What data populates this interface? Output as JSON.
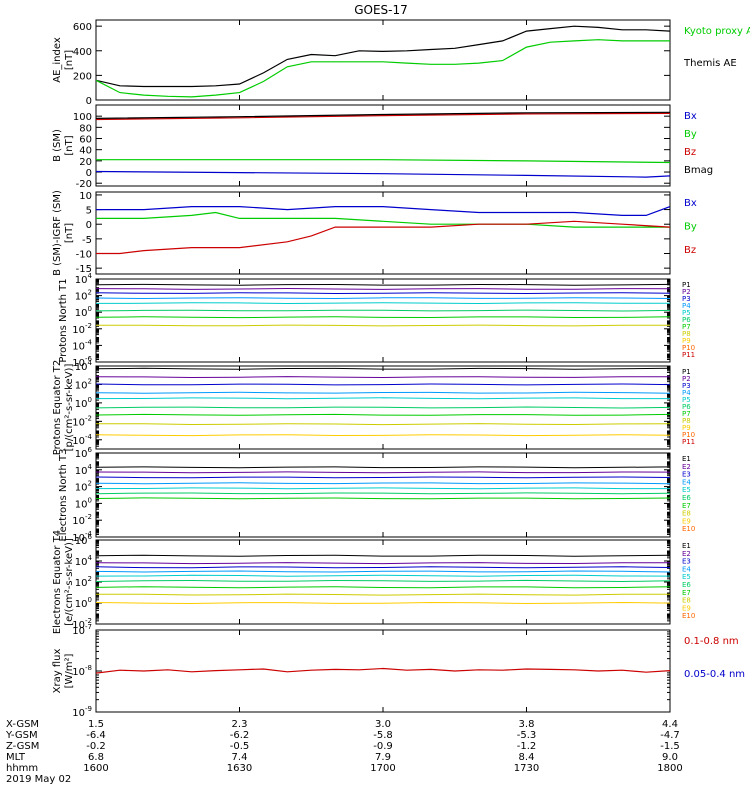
{
  "title": "GOES-17",
  "footer": {
    "row_labels": [
      "X-GSM",
      "Y-GSM",
      "Z-GSM",
      "MLT",
      "hhmm",
      "2019 May 02"
    ],
    "columns": [
      [
        "1.5",
        "-6.4",
        "-0.2",
        "6.8",
        "1600"
      ],
      [
        "2.3",
        "-6.2",
        "-0.5",
        "7.4",
        "1630"
      ],
      [
        "3.0",
        "-5.8",
        "-0.9",
        "7.9",
        "1700"
      ],
      [
        "3.8",
        "-5.3",
        "-1.2",
        "8.4",
        "1730"
      ],
      [
        "4.4",
        "-4.7",
        "-1.5",
        "9.0",
        "1800"
      ]
    ]
  },
  "colors": {
    "black": "#000000",
    "green": "#00cc00",
    "blue": "#0000cc",
    "red": "#cc0000",
    "p_colors": [
      "#000000",
      "#660099",
      "#0000cc",
      "#0099ff",
      "#00cccc",
      "#00cc66",
      "#00cc00",
      "#cccc00",
      "#ffcc00",
      "#ff6600",
      "#cc0000"
    ]
  },
  "chart_data": [
    {
      "type": "line",
      "ylabel": "AE_index [nT]",
      "ylim": [
        0,
        650
      ],
      "yticks": [
        "0",
        "200",
        "400",
        "600"
      ],
      "legend": [
        "Kyoto proxy AE",
        "Themis AE"
      ],
      "series": [
        {
          "name": "Themis AE",
          "x": [
            1600,
            1605,
            1610,
            1615,
            1620,
            1625,
            1630,
            1635,
            1640,
            1645,
            1650,
            1655,
            1700,
            1705,
            1710,
            1715,
            1720,
            1725,
            1730,
            1735,
            1740,
            1745,
            1750,
            1755,
            1800
          ],
          "values": [
            160,
            115,
            110,
            110,
            110,
            115,
            130,
            220,
            330,
            370,
            360,
            400,
            395,
            400,
            410,
            420,
            450,
            480,
            560,
            580,
            600,
            590,
            570,
            570,
            560
          ]
        },
        {
          "name": "Kyoto proxy AE",
          "x": [
            1600,
            1605,
            1610,
            1615,
            1620,
            1625,
            1630,
            1635,
            1640,
            1645,
            1650,
            1655,
            1700,
            1705,
            1710,
            1715,
            1720,
            1725,
            1730,
            1735,
            1740,
            1745,
            1750,
            1755,
            1800
          ],
          "values": [
            160,
            60,
            40,
            30,
            25,
            40,
            60,
            150,
            270,
            310,
            310,
            310,
            310,
            300,
            290,
            290,
            300,
            320,
            430,
            470,
            480,
            490,
            480,
            480,
            480
          ]
        }
      ]
    },
    {
      "type": "line",
      "ylabel": "B (SM) [nT]",
      "ylim": [
        -25,
        120
      ],
      "yticks": [
        "-20",
        "0",
        "20",
        "40",
        "60",
        "80",
        "100"
      ],
      "legend": [
        "Bx",
        "By",
        "Bz",
        "Bmag"
      ],
      "series": [
        {
          "name": "Bz",
          "x": [
            1600,
            1630,
            1700,
            1730,
            1800
          ],
          "values": [
            94,
            97,
            101,
            104,
            105
          ]
        },
        {
          "name": "Bmag",
          "x": [
            1600,
            1630,
            1700,
            1730,
            1800
          ],
          "values": [
            96,
            99,
            103,
            106,
            107
          ]
        },
        {
          "name": "By",
          "x": [
            1600,
            1630,
            1700,
            1730,
            1800
          ],
          "values": [
            22,
            22,
            22,
            20,
            17
          ]
        },
        {
          "name": "Bx",
          "x": [
            1600,
            1630,
            1700,
            1730,
            1755,
            1800
          ],
          "values": [
            1,
            -1,
            -3,
            -6,
            -9,
            -7
          ]
        }
      ]
    },
    {
      "type": "line",
      "ylabel": "B (SM)-IGRF (SM) [nT]",
      "ylim": [
        -17,
        11
      ],
      "yticks": [
        "-15",
        "-10",
        "-5",
        "0",
        "5",
        "10"
      ],
      "legend": [
        "Bx",
        "By",
        "Bz"
      ],
      "series": [
        {
          "name": "Bx",
          "x": [
            1600,
            1610,
            1620,
            1630,
            1640,
            1650,
            1700,
            1710,
            1720,
            1730,
            1740,
            1750,
            1755,
            1800
          ],
          "values": [
            5,
            5,
            6,
            6,
            5,
            6,
            6,
            5,
            4,
            4,
            4,
            3,
            3,
            6
          ]
        },
        {
          "name": "By",
          "x": [
            1600,
            1610,
            1620,
            1625,
            1630,
            1640,
            1650,
            1700,
            1710,
            1720,
            1730,
            1740,
            1750,
            1800
          ],
          "values": [
            2,
            2,
            3,
            4,
            2,
            2,
            2,
            1,
            0,
            0,
            0,
            -1,
            -1,
            -1
          ]
        },
        {
          "name": "Bz",
          "x": [
            1600,
            1605,
            1610,
            1620,
            1630,
            1640,
            1645,
            1650,
            1700,
            1710,
            1720,
            1730,
            1740,
            1750,
            1800
          ],
          "values": [
            -10,
            -10,
            -9,
            -8,
            -8,
            -6,
            -4,
            -1,
            -1,
            -1,
            0,
            0,
            1,
            0,
            -1
          ]
        }
      ]
    },
    {
      "type": "line",
      "ylabel": "Protons North T1",
      "log": true,
      "ylim_exp": [
        -6,
        4
      ],
      "yticks": [
        {
          "b": "10",
          "e": "4"
        },
        {
          "b": "10",
          "e": "2"
        },
        {
          "b": "10",
          "e": "0"
        },
        {
          "b": "10",
          "e": "-2"
        },
        {
          "b": "10",
          "e": "-4"
        },
        {
          "b": "10",
          "e": "-6"
        }
      ],
      "legend": [
        "P1",
        "P2",
        "P3",
        "P4",
        "P5",
        "P6",
        "P7",
        "P8",
        "P9",
        "P10",
        "P11"
      ],
      "series_log": [
        3.3,
        2.8,
        2.3,
        1.7,
        1.1,
        0.2,
        -0.6,
        -1.6
      ]
    },
    {
      "type": "line",
      "ylabel": "Protons Equator T2 [p/(cm²-s-sr-keV)]",
      "log": true,
      "ylim_exp": [
        -5,
        4
      ],
      "yticks": [
        {
          "b": "10",
          "e": "4"
        },
        {
          "b": "10",
          "e": "2"
        },
        {
          "b": "10",
          "e": "0"
        },
        {
          "b": "10",
          "e": "-2"
        },
        {
          "b": "10",
          "e": "-4"
        }
      ],
      "legend": [
        "P1",
        "P2",
        "P3",
        "P4",
        "P5",
        "P6",
        "P7",
        "P8",
        "P9",
        "P10",
        "P11"
      ],
      "series_log": [
        3.7,
        2.8,
        2.0,
        1.1,
        0.5,
        -0.5,
        -1.3,
        -2.3,
        -3.5
      ]
    },
    {
      "type": "line",
      "ylabel": "Electrons North T3",
      "log": true,
      "ylim_exp": [
        -4,
        6
      ],
      "yticks": [
        {
          "b": "10",
          "e": "6"
        },
        {
          "b": "10",
          "e": "4"
        },
        {
          "b": "10",
          "e": "2"
        },
        {
          "b": "10",
          "e": "0"
        },
        {
          "b": "10",
          "e": "-2"
        },
        {
          "b": "10",
          "e": "-4"
        }
      ],
      "legend": [
        "E1",
        "E2",
        "E3",
        "E4",
        "E5",
        "E6",
        "E7",
        "E8",
        "E9",
        "E10"
      ],
      "series_log": [
        4.3,
        3.7,
        3.1,
        2.4,
        1.8,
        1.2,
        0.6
      ]
    },
    {
      "type": "line",
      "ylabel": "Electrons Equator T4 [e/(cm²-s-sr-keV)]",
      "log": true,
      "ylim_exp": [
        -2,
        6
      ],
      "yticks": [
        {
          "b": "10",
          "e": "6"
        },
        {
          "b": "10",
          "e": "4"
        },
        {
          "b": "10",
          "e": "2"
        },
        {
          "b": "10",
          "e": "0"
        },
        {
          "b": "10",
          "e": "-2"
        }
      ],
      "legend": [
        "E1",
        "E2",
        "E3",
        "E4",
        "E5",
        "E6",
        "E7",
        "E8",
        "E9",
        "E10"
      ],
      "series_log": [
        4.5,
        3.8,
        3.4,
        3.0,
        2.6,
        2.1,
        1.5,
        0.8,
        0.0
      ]
    },
    {
      "type": "line",
      "ylabel": "Xray flux [W/m²]",
      "log": true,
      "ylim_exp": [
        -9,
        -7
      ],
      "yticks": [
        {
          "b": "10",
          "e": "-7"
        },
        {
          "b": "10",
          "e": "-8"
        },
        {
          "b": "10",
          "e": "-9"
        }
      ],
      "legend": [
        "0.1-0.8 nm",
        "0.05-0.4 nm"
      ],
      "series": [
        {
          "name": "0.1-0.8 nm",
          "x": [
            1600,
            1605,
            1610,
            1615,
            1620,
            1625,
            1630,
            1635,
            1640,
            1645,
            1650,
            1655,
            1700,
            1705,
            1710,
            1715,
            1720,
            1725,
            1730,
            1735,
            1740,
            1745,
            1750,
            1755,
            1800
          ],
          "values_log": [
            -8.05,
            -7.98,
            -8.0,
            -7.97,
            -8.02,
            -7.99,
            -7.97,
            -7.95,
            -8.02,
            -7.98,
            -7.96,
            -7.97,
            -7.94,
            -7.98,
            -7.96,
            -8.0,
            -7.97,
            -7.98,
            -7.95,
            -7.96,
            -7.97,
            -8.0,
            -7.98,
            -8.03,
            -7.99
          ]
        }
      ]
    }
  ]
}
